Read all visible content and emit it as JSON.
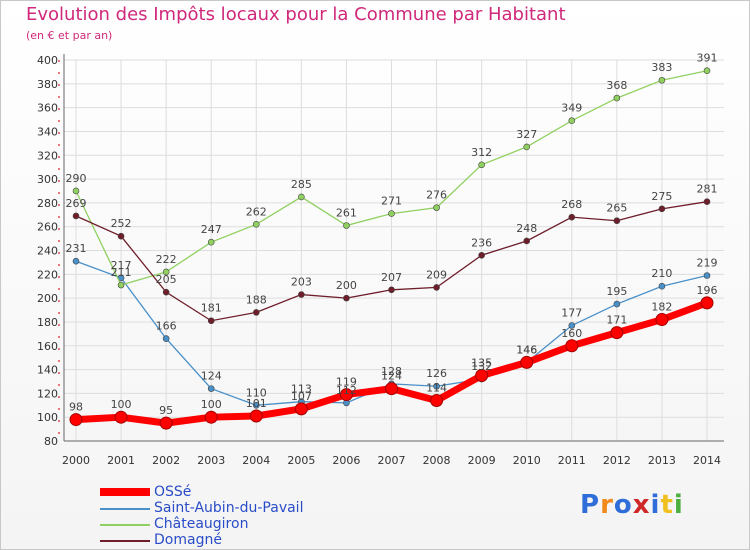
{
  "header": {
    "title": "Evolution des Impôts locaux pour la Commune par Habitant",
    "subtitle": "(en € et par an)"
  },
  "colors": {
    "title": "#d0287a",
    "legend_text": "#2a4cc8",
    "grid": "#dddddd"
  },
  "logo": {
    "text": "Proxiti",
    "letter_colors": [
      "#2f6ed8",
      "#f08a1c",
      "#2f6ed8",
      "#d02828",
      "#2f6ed8",
      "#f0c020",
      "#4cb040"
    ]
  },
  "chart_data": {
    "type": "line",
    "title": "Evolution des Impôts locaux pour la Commune par Habitant",
    "subtitle": "(en € et par an)",
    "x": [
      2000,
      2001,
      2002,
      2003,
      2004,
      2005,
      2006,
      2007,
      2008,
      2009,
      2010,
      2011,
      2012,
      2013,
      2014
    ],
    "ylim": [
      80,
      400
    ],
    "yticks": [
      80,
      100,
      120,
      140,
      160,
      180,
      200,
      220,
      240,
      260,
      280,
      300,
      320,
      340,
      360,
      380,
      400
    ],
    "grid": true,
    "legend_position": "bottom-left",
    "series": [
      {
        "name": "OSSé",
        "color": "#ff0000",
        "emphasis": true,
        "values": [
          98,
          100,
          95,
          100,
          101,
          107,
          119,
          124,
          114,
          135,
          146,
          160,
          171,
          182,
          196
        ],
        "labels": [
          "98",
          "100",
          "95",
          "100",
          "101",
          "107",
          "119",
          "124",
          "114",
          "135",
          "146",
          "160",
          "171",
          "182",
          "196"
        ]
      },
      {
        "name": "Saint-Aubin-du-Pavail",
        "color": "#4a90c8",
        "emphasis": false,
        "values": [
          231,
          217,
          166,
          124,
          110,
          113,
          112,
          128,
          126,
          132,
          146,
          177,
          195,
          210,
          219
        ],
        "labels": [
          "231",
          "217",
          "166",
          "124",
          "110",
          "113",
          "112",
          "128",
          "126",
          "132",
          "146",
          "177",
          "195",
          "210",
          "219"
        ]
      },
      {
        "name": "Châteaugiron",
        "color": "#90d060",
        "emphasis": false,
        "values": [
          290,
          211,
          222,
          247,
          262,
          285,
          261,
          271,
          276,
          312,
          327,
          349,
          368,
          383,
          391
        ],
        "labels": [
          "290",
          "211",
          "222",
          "247",
          "262",
          "285",
          "261",
          "271",
          "276",
          "312",
          "327",
          "349",
          "368",
          "383",
          "391"
        ]
      },
      {
        "name": "Domagné",
        "color": "#6e1e2a",
        "emphasis": false,
        "values": [
          269,
          252,
          205,
          181,
          188,
          203,
          200,
          207,
          209,
          236,
          248,
          268,
          265,
          275,
          281
        ],
        "labels": [
          "269",
          "252",
          "205",
          "181",
          "188",
          "203",
          "200",
          "207",
          "209",
          "236",
          "248",
          "268",
          "265",
          "275",
          "281"
        ]
      }
    ]
  }
}
